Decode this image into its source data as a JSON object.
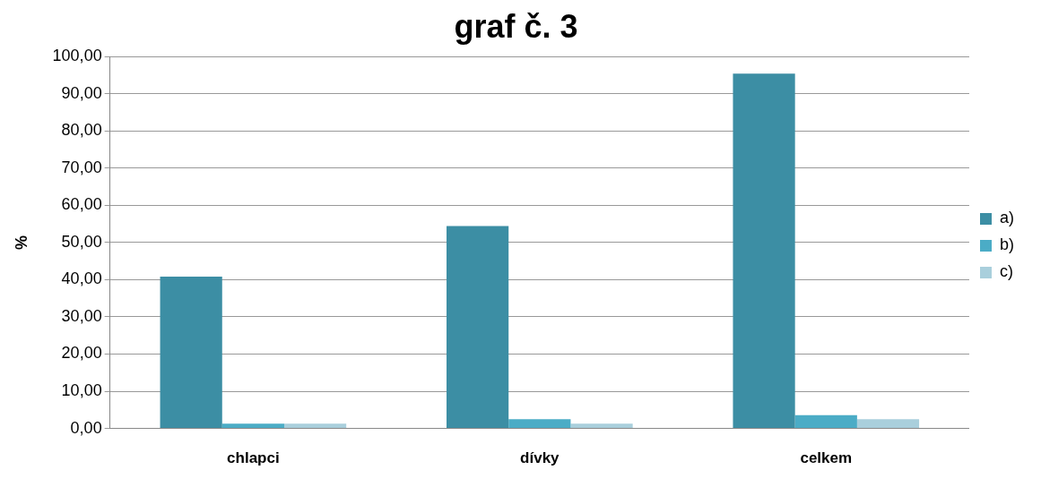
{
  "chart_data": {
    "type": "bar",
    "title": "graf č. 3",
    "ylabel": "%",
    "categories": [
      "chlapci",
      "dívky",
      "celkem"
    ],
    "series": [
      {
        "name": "a)",
        "color": "#3c8ea4",
        "values": [
          40.8,
          54.4,
          95.4
        ]
      },
      {
        "name": "b)",
        "color": "#4bacc6",
        "values": [
          1.3,
          2.5,
          3.6
        ]
      },
      {
        "name": "c)",
        "color": "#a9cfdc",
        "values": [
          1.3,
          1.3,
          2.5
        ]
      }
    ],
    "ylim": [
      0,
      100
    ],
    "yticks": [
      {
        "value": 0,
        "label": "0,00"
      },
      {
        "value": 10,
        "label": "10,00"
      },
      {
        "value": 20,
        "label": "20,00"
      },
      {
        "value": 30,
        "label": "30,00"
      },
      {
        "value": 40,
        "label": "40,00"
      },
      {
        "value": 50,
        "label": "50,00"
      },
      {
        "value": 60,
        "label": "60,00"
      },
      {
        "value": 70,
        "label": "70,00"
      },
      {
        "value": 80,
        "label": "80,00"
      },
      {
        "value": 90,
        "label": "90,00"
      },
      {
        "value": 100,
        "label": "100,00"
      }
    ],
    "grid": "y",
    "legend": "right"
  }
}
